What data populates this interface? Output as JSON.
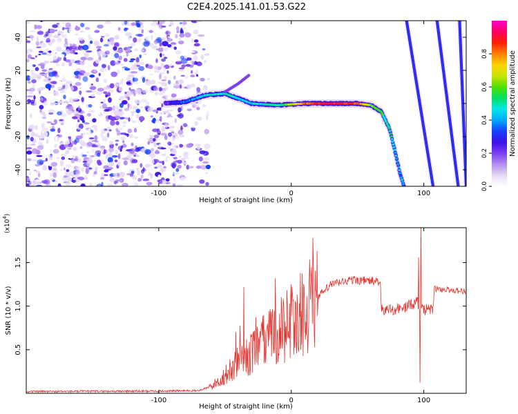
{
  "title": "C2E4.2025.141.01.53.G22",
  "chart_data": [
    {
      "type": "heatmap",
      "xlabel": "Height of straight line (km)",
      "ylabel": "Frequency (Hz)",
      "xlim": [
        -200,
        132
      ],
      "ylim": [
        -50,
        50
      ],
      "xticks": [
        -100,
        0,
        100
      ],
      "yticks": [
        -40,
        -20,
        0,
        20,
        40
      ],
      "colorbar": {
        "label": "Normalized spectral amplitude",
        "range": [
          0,
          1
        ],
        "ticks": [
          "0.0",
          "0.2",
          "0.4",
          "0.6",
          "0.8"
        ],
        "colormap": [
          "#ffffff",
          "#e6d9f5",
          "#b48cf0",
          "#7a3ff0",
          "#3c10e8",
          "#1440ff",
          "#00a8ff",
          "#00e6e6",
          "#00e060",
          "#50e000",
          "#c8e600",
          "#ffd200",
          "#ff8000",
          "#ff2000",
          "#ff0060",
          "#ff00d0"
        ]
      },
      "features": {
        "noise_region_km": [
          -200,
          -62
        ],
        "signal_track": [
          {
            "x": -95,
            "y": 0,
            "amp": 0.25
          },
          {
            "x": -80,
            "y": 1,
            "amp": 0.35
          },
          {
            "x": -65,
            "y": 5,
            "amp": 0.45
          },
          {
            "x": -50,
            "y": 6,
            "amp": 0.5
          },
          {
            "x": -40,
            "y": 3,
            "amp": 0.45
          },
          {
            "x": -30,
            "y": 0,
            "amp": 0.45
          },
          {
            "x": -10,
            "y": -1,
            "amp": 0.5
          },
          {
            "x": 10,
            "y": 0,
            "amp": 0.8
          },
          {
            "x": 30,
            "y": 0,
            "amp": 0.9
          },
          {
            "x": 50,
            "y": 0,
            "amp": 0.85
          },
          {
            "x": 60,
            "y": -1,
            "amp": 0.6
          },
          {
            "x": 68,
            "y": -5,
            "amp": 0.55
          },
          {
            "x": 74,
            "y": -15,
            "amp": 0.5
          },
          {
            "x": 78,
            "y": -28,
            "amp": 0.45
          },
          {
            "x": 82,
            "y": -42,
            "amp": 0.4
          },
          {
            "x": 85,
            "y": -50,
            "amp": 0.4
          }
        ],
        "upper_branch": [
          {
            "x": -50,
            "y": 7
          },
          {
            "x": -40,
            "y": 12
          },
          {
            "x": -32,
            "y": 17
          }
        ],
        "aliased_lines": [
          {
            "x_top": 87,
            "x_bottom": 107,
            "amp": 0.35
          },
          {
            "x_top": 110,
            "x_bottom": 126,
            "amp": 0.3
          },
          {
            "x_top": 127,
            "x_bottom": 132,
            "amp": 0.3
          }
        ]
      }
    },
    {
      "type": "line",
      "xlabel": "Height of straight line (km)",
      "ylabel": "SNR (10 * v/v)",
      "y_multiplier": "(x10",
      "y_multiplier_exp": "4",
      "y_multiplier_close": ")",
      "xlim": [
        -200,
        132
      ],
      "ylim": [
        0,
        19000
      ],
      "xticks": [
        -100,
        0,
        100
      ],
      "yticks": [
        {
          "value": 5000,
          "label": "0.5"
        },
        {
          "value": 10000,
          "label": "1.0"
        },
        {
          "value": 15000,
          "label": "1.5"
        }
      ],
      "series": [
        {
          "color": "#e8302b",
          "envelope": [
            {
              "x": -200,
              "y": 200
            },
            {
              "x": -100,
              "y": 250
            },
            {
              "x": -70,
              "y": 300
            },
            {
              "x": -60,
              "y": 800
            },
            {
              "x": -50,
              "y": 2000
            },
            {
              "x": -40,
              "y": 3500
            },
            {
              "x": -30,
              "y": 4500
            },
            {
              "x": -20,
              "y": 6000
            },
            {
              "x": -10,
              "y": 7000
            },
            {
              "x": 0,
              "y": 8000
            },
            {
              "x": 10,
              "y": 9500
            },
            {
              "x": 20,
              "y": 11000
            },
            {
              "x": 30,
              "y": 12500
            },
            {
              "x": 45,
              "y": 13000
            },
            {
              "x": 60,
              "y": 12900
            },
            {
              "x": 67,
              "y": 12800
            },
            {
              "x": 68,
              "y": 9500
            },
            {
              "x": 85,
              "y": 9800
            },
            {
              "x": 95,
              "y": 10500
            },
            {
              "x": 100,
              "y": 9500
            },
            {
              "x": 107,
              "y": 9700
            },
            {
              "x": 108,
              "y": 12000
            },
            {
              "x": 132,
              "y": 11700
            }
          ],
          "spikes": [
            {
              "x": -36,
              "y": 12200
            },
            {
              "x": -12,
              "y": 13200
            },
            {
              "x": 0,
              "y": 12500
            },
            {
              "x": 96,
              "y": 15600
            },
            {
              "x": 98,
              "y": 19000
            },
            {
              "x": 97,
              "y": 1200
            }
          ]
        }
      ]
    }
  ]
}
